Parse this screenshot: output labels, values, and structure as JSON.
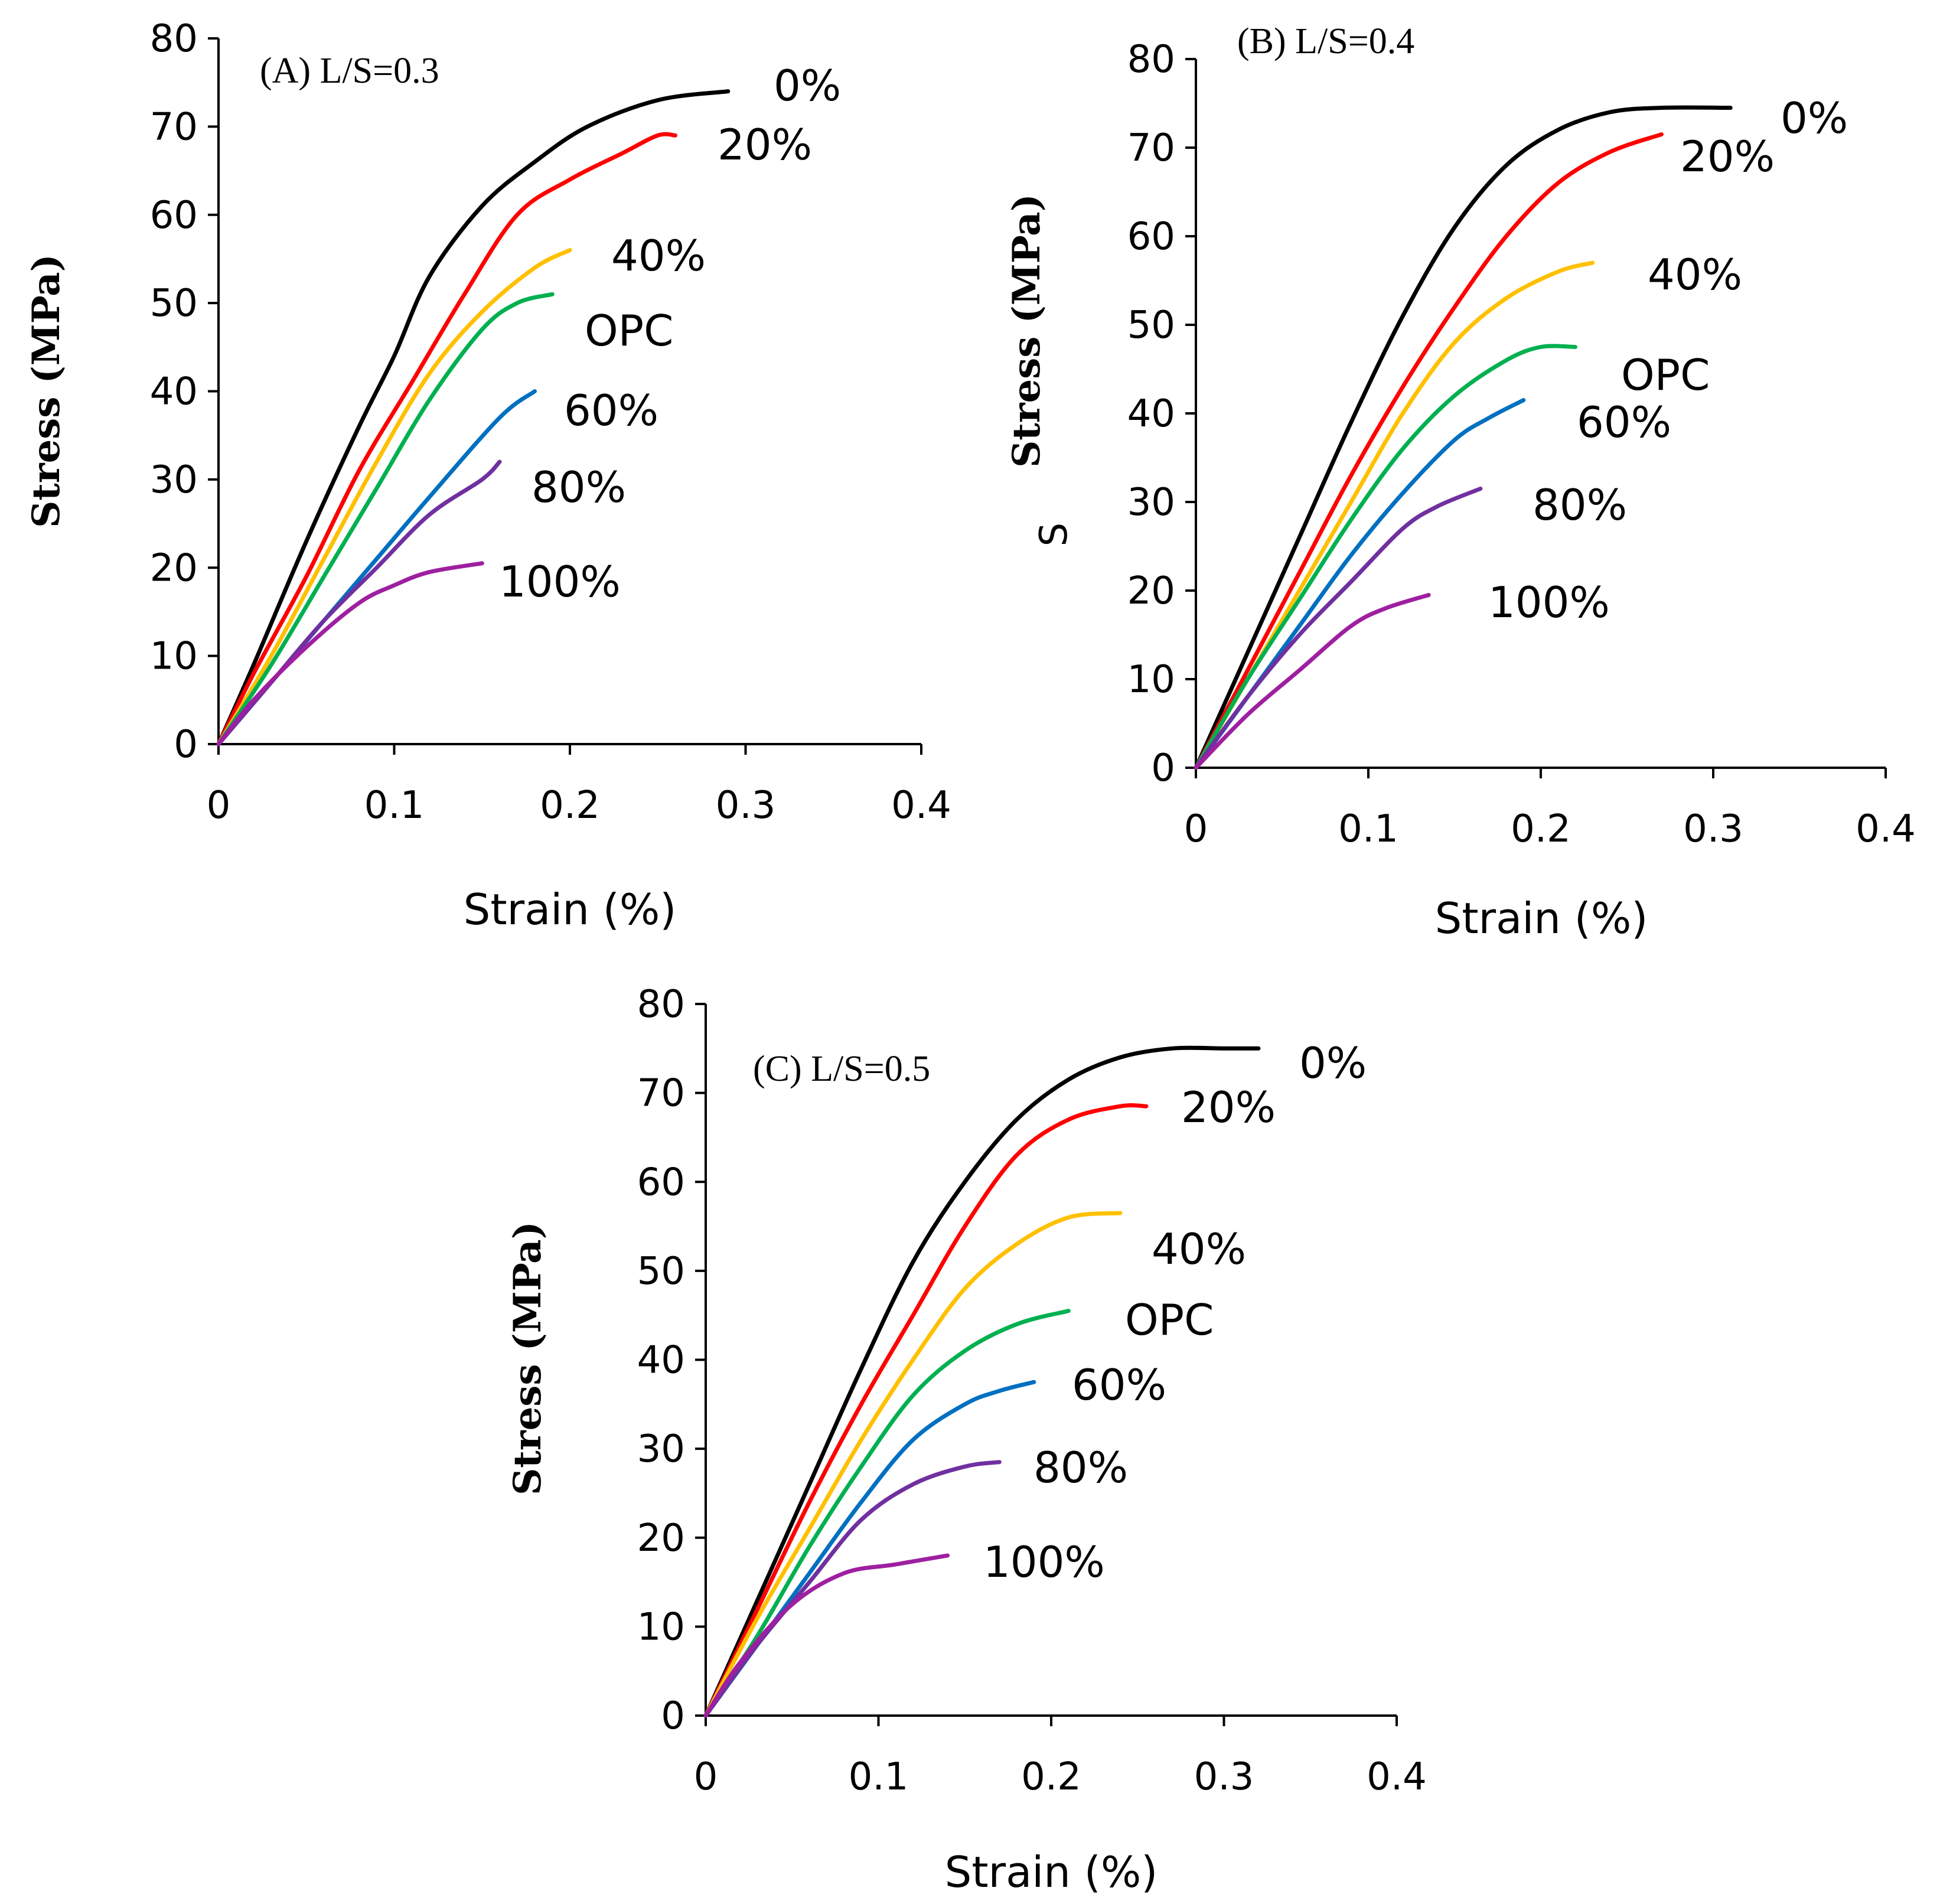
{
  "chart_data": [
    {
      "type": "line",
      "panel": "A",
      "title": "(A)  L/S=0.3",
      "xlabel": "Strain (%)",
      "ylabel": "Stress (MPa)",
      "xlim": [
        0,
        0.4
      ],
      "ylim": [
        0,
        80
      ],
      "xticks": [
        "0",
        "0.1",
        "0.2",
        "0.3",
        "0.4"
      ],
      "yticks": [
        "0",
        "10",
        "20",
        "30",
        "40",
        "50",
        "60",
        "70",
        "80"
      ],
      "grid": false,
      "series": [
        {
          "name": "0%",
          "color": "#000000",
          "x": [
            0,
            0.02,
            0.05,
            0.08,
            0.1,
            0.12,
            0.15,
            0.18,
            0.21,
            0.25,
            0.29
          ],
          "y": [
            0,
            9,
            23,
            36,
            44,
            53,
            61,
            66,
            70,
            73,
            74
          ]
        },
        {
          "name": "20%",
          "color": "#ff0000",
          "x": [
            0,
            0.02,
            0.05,
            0.08,
            0.11,
            0.14,
            0.17,
            0.2,
            0.23,
            0.25,
            0.26
          ],
          "y": [
            0,
            8,
            19,
            31,
            41,
            51,
            60,
            64,
            67,
            69,
            69
          ]
        },
        {
          "name": "40%",
          "color": "#ffc000",
          "x": [
            0,
            0.03,
            0.06,
            0.09,
            0.12,
            0.15,
            0.18,
            0.2
          ],
          "y": [
            0,
            10,
            21,
            32,
            42,
            49,
            54,
            56
          ]
        },
        {
          "name": "OPC",
          "color": "#00b050",
          "x": [
            0,
            0.03,
            0.06,
            0.09,
            0.12,
            0.15,
            0.17,
            0.19
          ],
          "y": [
            0,
            9,
            19,
            29,
            39,
            47,
            50,
            51
          ]
        },
        {
          "name": "60%",
          "color": "#0070c0",
          "x": [
            0,
            0.03,
            0.06,
            0.09,
            0.12,
            0.16,
            0.18
          ],
          "y": [
            0,
            7,
            14,
            21,
            28,
            37,
            40
          ]
        },
        {
          "name": "80%",
          "color": "#7030a0",
          "x": [
            0,
            0.03,
            0.06,
            0.09,
            0.12,
            0.15,
            0.16
          ],
          "y": [
            0,
            7,
            14,
            20,
            26,
            30,
            32
          ]
        },
        {
          "name": "100%",
          "color": "#9e1fa0",
          "x": [
            0,
            0.02,
            0.05,
            0.08,
            0.1,
            0.12,
            0.15
          ],
          "y": [
            0,
            5,
            11,
            16,
            18,
            19.5,
            20.5
          ]
        }
      ]
    },
    {
      "type": "line",
      "panel": "B",
      "title": "(B)  L/S=0.4",
      "xlabel": "Strain (%)",
      "ylabel": "Stress (MPa)",
      "xlim": [
        0,
        0.4
      ],
      "ylim": [
        0,
        80
      ],
      "xticks": [
        "0",
        "0.1",
        "0.2",
        "0.3",
        "0.4"
      ],
      "yticks": [
        "0",
        "10",
        "20",
        "30",
        "40",
        "50",
        "60",
        "70",
        "80"
      ],
      "grid": false,
      "series": [
        {
          "name": "0%",
          "color": "#000000",
          "x": [
            0,
            0.03,
            0.06,
            0.09,
            0.12,
            0.15,
            0.18,
            0.21,
            0.24,
            0.27,
            0.31
          ],
          "y": [
            0,
            13,
            26,
            39,
            51,
            61,
            68,
            72,
            74,
            74.5,
            74.5
          ]
        },
        {
          "name": "20%",
          "color": "#ff0000",
          "x": [
            0,
            0.03,
            0.06,
            0.09,
            0.12,
            0.15,
            0.18,
            0.21,
            0.24,
            0.27
          ],
          "y": [
            0,
            11,
            22,
            33,
            43,
            52,
            60,
            66,
            69.5,
            71.5
          ]
        },
        {
          "name": "40%",
          "color": "#ffc000",
          "x": [
            0,
            0.03,
            0.06,
            0.09,
            0.12,
            0.15,
            0.18,
            0.21,
            0.23
          ],
          "y": [
            0,
            10,
            20,
            30,
            40,
            48,
            53,
            56,
            57
          ]
        },
        {
          "name": "OPC",
          "color": "#00b050",
          "x": [
            0,
            0.03,
            0.06,
            0.09,
            0.12,
            0.15,
            0.18,
            0.2,
            0.22
          ],
          "y": [
            0,
            10,
            19,
            28,
            36,
            42,
            46,
            47.5,
            47.5
          ]
        },
        {
          "name": "60%",
          "color": "#0070c0",
          "x": [
            0,
            0.03,
            0.06,
            0.09,
            0.12,
            0.15,
            0.17,
            0.19
          ],
          "y": [
            0,
            8,
            16,
            24,
            31,
            37,
            39.5,
            41.5
          ]
        },
        {
          "name": "80%",
          "color": "#7030a0",
          "x": [
            0,
            0.03,
            0.06,
            0.09,
            0.12,
            0.14,
            0.165
          ],
          "y": [
            0,
            8,
            15,
            21,
            27,
            29.5,
            31.5
          ]
        },
        {
          "name": "100%",
          "color": "#9e1fa0",
          "x": [
            0,
            0.03,
            0.06,
            0.09,
            0.11,
            0.135
          ],
          "y": [
            0,
            6,
            11,
            16,
            18,
            19.5
          ]
        }
      ]
    },
    {
      "type": "line",
      "panel": "C",
      "title": "(C)  L/S=0.5",
      "xlabel": "Strain (%)",
      "ylabel": "Stress (MPa)",
      "xlim": [
        0,
        0.4
      ],
      "ylim": [
        0,
        80
      ],
      "xticks": [
        "0",
        "0.1",
        "0.2",
        "0.3",
        "0.4"
      ],
      "yticks": [
        "0",
        "10",
        "20",
        "30",
        "40",
        "50",
        "60",
        "70",
        "80"
      ],
      "grid": false,
      "series": [
        {
          "name": "0%",
          "color": "#000000",
          "x": [
            0,
            0.03,
            0.06,
            0.09,
            0.12,
            0.15,
            0.18,
            0.21,
            0.24,
            0.27,
            0.3,
            0.32
          ],
          "y": [
            0,
            13,
            26,
            39,
            51,
            60,
            67,
            71.5,
            74,
            75,
            75,
            75
          ]
        },
        {
          "name": "20%",
          "color": "#ff0000",
          "x": [
            0,
            0.03,
            0.06,
            0.09,
            0.12,
            0.15,
            0.18,
            0.21,
            0.24,
            0.255
          ],
          "y": [
            0,
            12,
            24,
            35,
            45,
            55,
            63,
            67,
            68.5,
            68.5
          ]
        },
        {
          "name": "40%",
          "color": "#ffc000",
          "x": [
            0,
            0.03,
            0.06,
            0.09,
            0.12,
            0.15,
            0.18,
            0.21,
            0.24
          ],
          "y": [
            0,
            11,
            21,
            31,
            40,
            48,
            53,
            56,
            56.5
          ]
        },
        {
          "name": "OPC",
          "color": "#00b050",
          "x": [
            0,
            0.03,
            0.06,
            0.09,
            0.12,
            0.15,
            0.18,
            0.21
          ],
          "y": [
            0,
            9,
            19,
            28,
            36,
            41,
            44,
            45.5
          ]
        },
        {
          "name": "60%",
          "color": "#0070c0",
          "x": [
            0,
            0.03,
            0.06,
            0.09,
            0.12,
            0.15,
            0.17,
            0.19
          ],
          "y": [
            0,
            8,
            16,
            24,
            31,
            35,
            36.5,
            37.5
          ]
        },
        {
          "name": "80%",
          "color": "#7030a0",
          "x": [
            0,
            0.03,
            0.06,
            0.09,
            0.12,
            0.15,
            0.17
          ],
          "y": [
            0,
            8,
            15,
            22,
            26,
            28,
            28.5
          ]
        },
        {
          "name": "100%",
          "color": "#9e1fa0",
          "x": [
            0,
            0.02,
            0.05,
            0.08,
            0.11,
            0.14
          ],
          "y": [
            0,
            6,
            12.5,
            16,
            17,
            18
          ]
        }
      ]
    }
  ],
  "stray_marks": {
    "panelB_ylabel_letter": "S"
  }
}
